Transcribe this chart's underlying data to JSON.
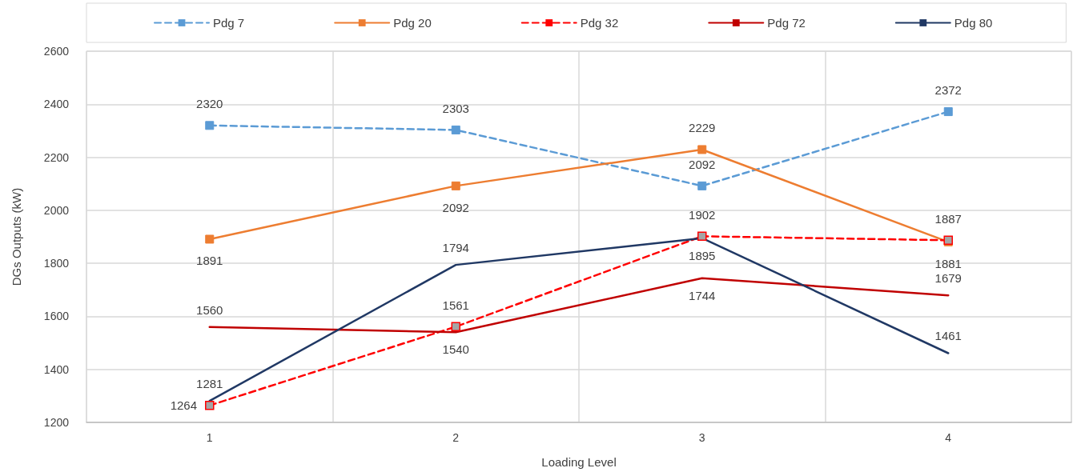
{
  "chart_data": {
    "type": "line",
    "xlabel": "Loading Level",
    "ylabel": "DGs Outputs (kW)",
    "categories": [
      "1",
      "2",
      "3",
      "4"
    ],
    "ylim": [
      1200,
      2600
    ],
    "yticks": [
      1200,
      1400,
      1600,
      1800,
      2000,
      2200,
      2400,
      2600
    ],
    "grid": true,
    "legend": "top",
    "data_labels": true,
    "series": [
      {
        "name": "Pdg 7",
        "color": "#5b9bd5",
        "values": [
          2320,
          2303,
          2092,
          2372
        ],
        "marker": "square",
        "line_style": "dashed"
      },
      {
        "name": "Pdg 20",
        "color": "#ed7d31",
        "values": [
          1891,
          2092,
          2229,
          1881
        ],
        "marker": "square",
        "line_style": "solid"
      },
      {
        "name": "Pdg 32",
        "color": "#ff0000",
        "colors": [
          "#a5a5a5",
          "#a5a5a5",
          "#a5a5a5",
          "#a5a5a5"
        ],
        "values": [
          1264,
          1561,
          1902,
          1887
        ],
        "marker": "square",
        "line_style": "dashed"
      },
      {
        "name": "Pdg 72",
        "color": "#c00000",
        "values": [
          1560,
          1540,
          1744,
          1679
        ],
        "marker": "none",
        "line_style": "solid"
      },
      {
        "name": "Pdg 80",
        "color": "#203864",
        "values": [
          1281,
          1794,
          1895,
          1461
        ],
        "marker": "none",
        "line_style": "solid"
      }
    ]
  }
}
